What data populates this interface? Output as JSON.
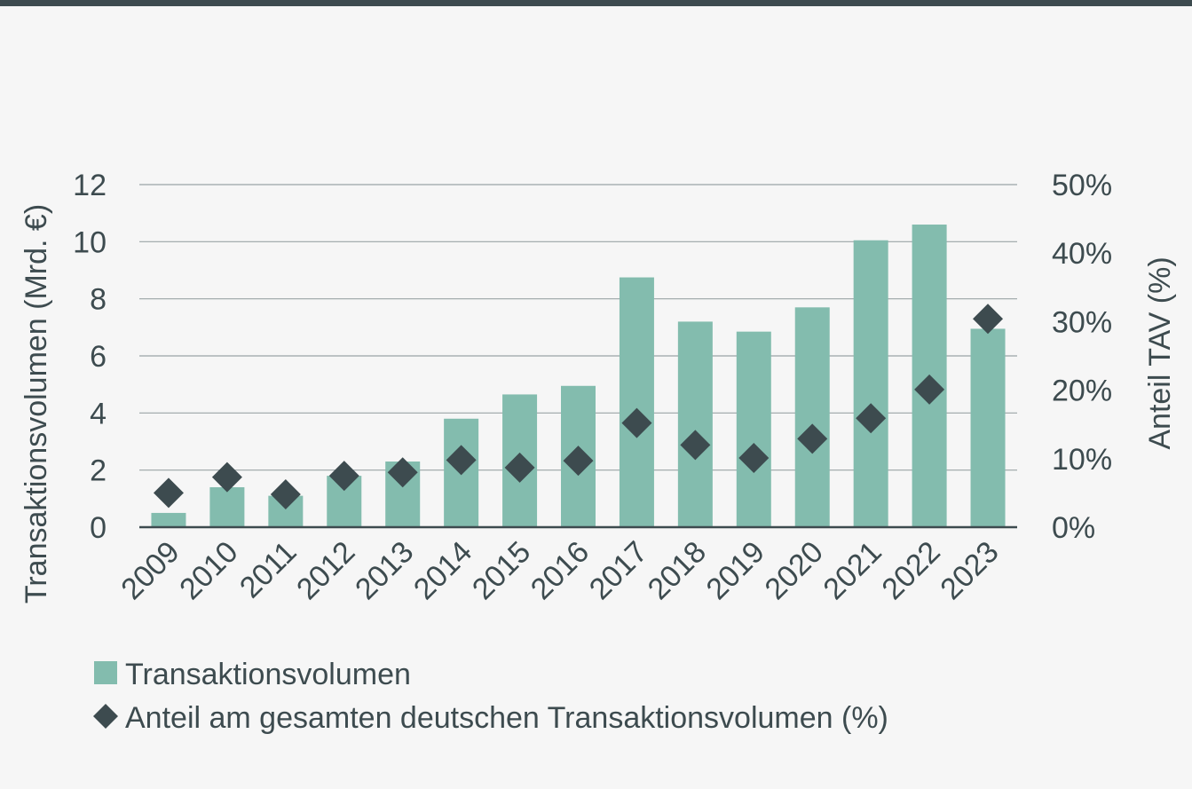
{
  "colors": {
    "bar": "#83bcae",
    "marker": "#3d4b4f",
    "grid": "#9aa3a6",
    "axis": "#3d4b4f",
    "text": "#3d4b4f",
    "top_rule": "#3d4b4f",
    "background": "#f6f6f6"
  },
  "chart_data": {
    "type": "bar",
    "title": "",
    "categories": [
      "2009",
      "2010",
      "2011",
      "2012",
      "2013",
      "2014",
      "2015",
      "2016",
      "2017",
      "2018",
      "2019",
      "2020",
      "2021",
      "2022",
      "2023"
    ],
    "series": [
      {
        "name": "Transaktionsvolumen",
        "type": "bar",
        "axis": "left",
        "values": [
          0.5,
          1.4,
          1.1,
          1.8,
          2.3,
          3.8,
          4.65,
          4.95,
          8.75,
          7.2,
          6.85,
          7.7,
          10.05,
          10.6,
          6.95
        ]
      },
      {
        "name": "Anteil am gesamten deutschen Transaktionsvolumen (%)",
        "type": "scatter",
        "marker": "diamond",
        "axis": "right",
        "values": [
          5,
          7.3,
          4.8,
          7.5,
          8,
          9.8,
          8.7,
          9.7,
          15.2,
          12,
          10.1,
          12.9,
          15.9,
          20.1,
          30.4
        ]
      }
    ],
    "y_left": {
      "label": "Transaktionsvolumen (Mrd. €)",
      "ylim": [
        0,
        12
      ],
      "ticks": [
        "0",
        "2",
        "4",
        "6",
        "8",
        "10",
        "12"
      ],
      "tick_values": [
        0,
        2,
        4,
        6,
        8,
        10,
        12
      ]
    },
    "y_right": {
      "label": "Anteil TAV (%)",
      "ylim": [
        0,
        50
      ],
      "ticks": [
        "0%",
        "10%",
        "20%",
        "30%",
        "40%",
        "50%"
      ],
      "tick_values": [
        0,
        10,
        20,
        30,
        40,
        50
      ]
    },
    "grid": true,
    "legend_position": "bottom-left"
  }
}
